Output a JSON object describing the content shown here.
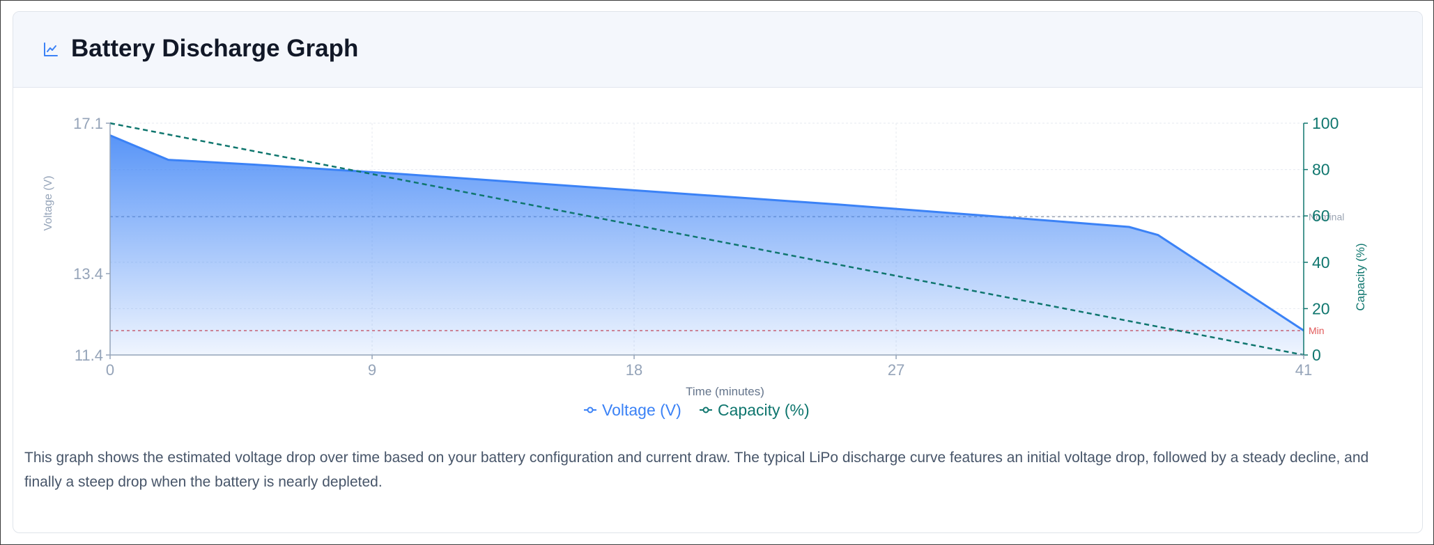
{
  "card": {
    "title": "Battery Discharge Graph",
    "icon": "line-chart-icon"
  },
  "description": "This graph shows the estimated voltage drop over time based on your battery configuration and current draw. The typical LiPo discharge curve features an initial voltage drop, followed by a steady decline, and finally a steep drop when the battery is nearly depleted.",
  "chart_data": {
    "type": "area",
    "xlabel": "Time (minutes)",
    "ylabel": "Voltage (V)",
    "y2label": "Capacity (%)",
    "xlim": [
      0,
      41
    ],
    "ylim": [
      11.4,
      17.1
    ],
    "y2lim": [
      0,
      100
    ],
    "x_ticks": [
      0,
      9,
      18,
      27,
      41
    ],
    "y_ticks": [
      "17.1",
      "13.4",
      "11.4"
    ],
    "y_tick_values": [
      17.1,
      13.4,
      11.4
    ],
    "y2_ticks": [
      0,
      20,
      40,
      60,
      80,
      100
    ],
    "grid": true,
    "legend_position": "bottom-center",
    "series": [
      {
        "name": "Voltage (V)",
        "axis": "left",
        "style": "filled-area",
        "color": "#3b82f6",
        "x": [
          0,
          2,
          5,
          10,
          15,
          20,
          25,
          30,
          35,
          36,
          41
        ],
        "y": [
          16.8,
          16.2,
          16.08,
          15.85,
          15.6,
          15.35,
          15.1,
          14.83,
          14.55,
          14.35,
          12.0
        ]
      },
      {
        "name": "Capacity (%)",
        "axis": "right",
        "style": "dashed-line",
        "color": "#0f766e",
        "x": [
          0,
          41
        ],
        "y": [
          100,
          0
        ]
      }
    ],
    "reference_lines": [
      {
        "label": "Nominal",
        "axis": "left",
        "y": 14.8,
        "color": "#9aa3b2"
      },
      {
        "label": "Min",
        "axis": "left",
        "y": 12.0,
        "color": "#e25a5a"
      }
    ],
    "colors": {
      "voltage": "#3b82f6",
      "capacity": "#0f766e",
      "nominal": "#9aa3b2",
      "min": "#e25a5a",
      "axis": "#94a3b8"
    }
  }
}
